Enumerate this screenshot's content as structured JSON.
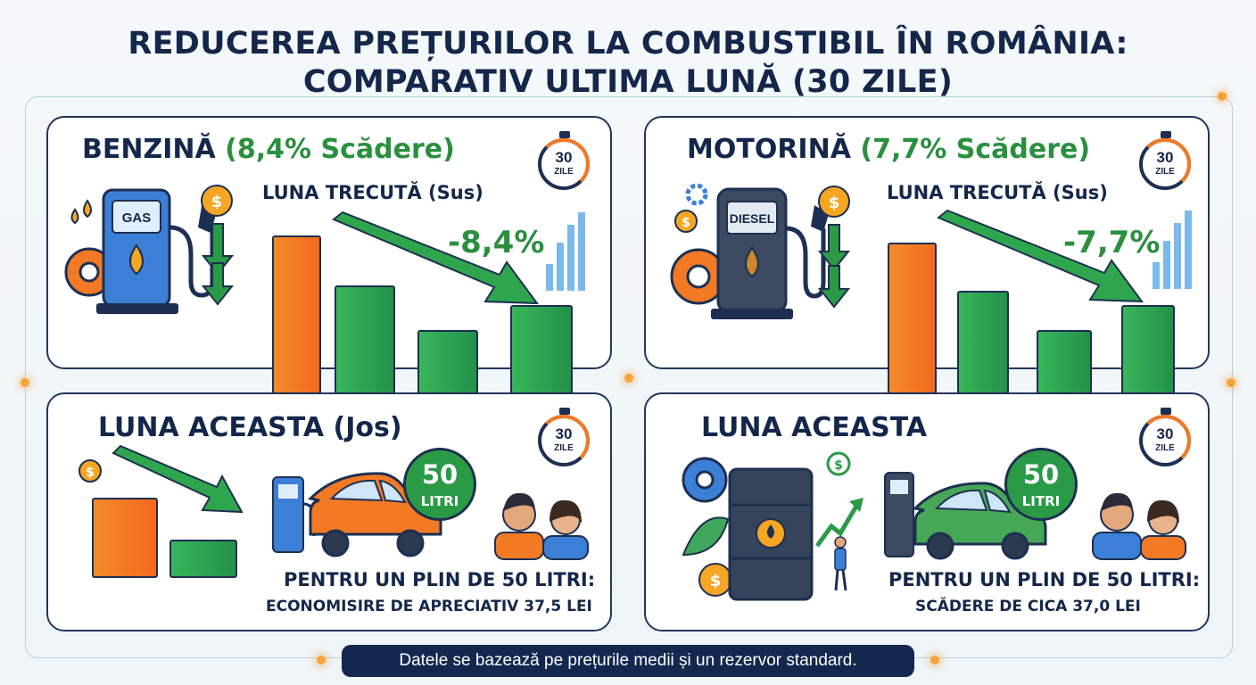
{
  "title_line1": "REDUCEREA PREȚURILOR LA COMBUSTIBIL ÎN ROMÂNIA:",
  "title_line2": "COMPARATIV ULTIMA LUNĂ (30 ZILE)",
  "colors": {
    "navy": "#14274a",
    "green": "#2a8f3e",
    "orange": "#f26a1f",
    "panel_border": "#23365e"
  },
  "benzina": {
    "name": "BENZINĂ",
    "drop_label": "(8,4% Scădere)",
    "sub": "LUNA TRECUTĂ (Sus)",
    "pct": "-8,4%",
    "pump_label": "GAS",
    "clock": {
      "value": "30",
      "unit": "ZILE"
    }
  },
  "motorina": {
    "name": "MOTORINĂ",
    "drop_label": "(7,7% Scădere)",
    "sub": "LUNA TRECUTĂ (Sus)",
    "pct": "-7,7%",
    "pump_label": "DIESEL",
    "clock": {
      "value": "30",
      "unit": "ZILE"
    }
  },
  "benzina_now": {
    "title": "LUNA ACEASTA (Jos)",
    "bubble_value": "50",
    "bubble_unit": "LITRI",
    "line1": "PENTRU UN PLIN DE 50 LITRI:",
    "line2": "ECONOMISIRE DE APRECIATIV 37,5 LEI",
    "clock": {
      "value": "30",
      "unit": "ZILE"
    }
  },
  "motorina_now": {
    "title": "LUNA ACEASTA",
    "bubble_value": "50",
    "bubble_unit": "LITRI",
    "line1": "PENTRU UN PLIN DE 50 LITRI:",
    "line2": "SCĂDERE DE CICA 37,0 LEI",
    "clock": {
      "value": "30",
      "unit": "ZILE"
    }
  },
  "footer": "Datele se bazează pe prețurile medii și un rezervor standard.",
  "icons": [
    "fuel-pump-icon",
    "dollar-coin-icon",
    "down-arrow-icon",
    "gear-icon",
    "stopwatch-icon",
    "car-icon",
    "people-icon",
    "oil-barrel-icon",
    "trend-arrow-icon"
  ]
}
